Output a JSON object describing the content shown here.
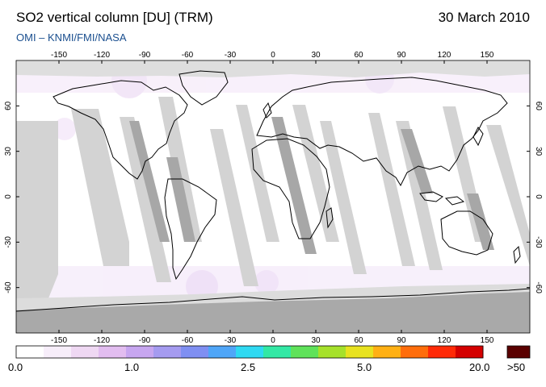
{
  "header": {
    "title": "SO2 vertical column [DU] (TRM)",
    "date": "30 March 2010",
    "subtitle": "OMI  –  KNMI/FMI/NASA"
  },
  "axes": {
    "lon_ticks": [
      "-150",
      "-120",
      "-90",
      "-60",
      "-30",
      "0",
      "30",
      "60",
      "90",
      "120",
      "150"
    ],
    "lat_ticks": [
      "60",
      "30",
      "0",
      "-30",
      "-60"
    ]
  },
  "colorbar": {
    "labels": [
      "0.0",
      "1.0",
      "2.5",
      "5.0",
      "20.0"
    ],
    "overflow_label": ">50",
    "overflow_color": "#5a0000",
    "colors": [
      "#ffffff",
      "#f7eefa",
      "#efd8f3",
      "#e2bdf0",
      "#c7a6f0",
      "#a59bf0",
      "#7f8ff2",
      "#4fa6f8",
      "#2fd9f2",
      "#33e8a5",
      "#5fe25a",
      "#a6e12b",
      "#e8e21f",
      "#ffb014",
      "#ff6d0b",
      "#ff2a07",
      "#d40000"
    ]
  },
  "map_colors": {
    "ocean": "#ffffff",
    "gap_light": "#d3d3d3",
    "gap_dark": "#a7a7a7",
    "coast": "#000000"
  }
}
